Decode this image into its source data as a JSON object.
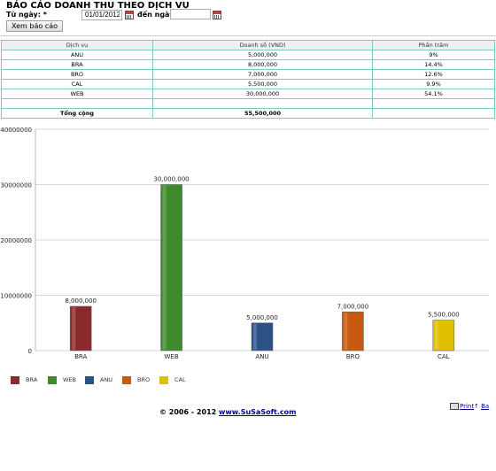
{
  "header": {
    "title": "BÁO CÁO DOANH THU THEO DỊCH VỤ",
    "from_label": "Từ ngày: *",
    "from_value": "01/01/2012",
    "to_label": "đến ngày:",
    "to_value": "",
    "submit_label": "Xem báo cáo"
  },
  "table": {
    "headers": [
      "Dịch vụ",
      "Doanh số (VND)",
      "Phần trăm"
    ],
    "rows": [
      {
        "service": "ANU",
        "revenue": "5,000,000",
        "percent": "9%"
      },
      {
        "service": "BRA",
        "revenue": "8,000,000",
        "percent": "14.4%"
      },
      {
        "service": "BRO",
        "revenue": "7,000,000",
        "percent": "12.6%"
      },
      {
        "service": "CAL",
        "revenue": "5,500,000",
        "percent": "9.9%"
      },
      {
        "service": "WEB",
        "revenue": "30,000,000",
        "percent": "54.1%"
      }
    ],
    "total_label": "Tổng cộng",
    "total_value": "55,500,000"
  },
  "chart_data": {
    "type": "bar",
    "categories": [
      "BRA",
      "WEB",
      "ANU",
      "BRO",
      "CAL"
    ],
    "values": [
      8000000,
      30000000,
      5000000,
      7000000,
      5500000
    ],
    "data_labels": [
      "8,000,000",
      "30,000,000",
      "5,000,000",
      "7,000,000",
      "5,500,000"
    ],
    "y_ticks": [
      "0",
      "10000000",
      "20000000",
      "30000000",
      "40000000"
    ],
    "ylim": [
      0,
      40000000
    ],
    "colors": [
      "#8b2a2a",
      "#3f8a2a",
      "#2a5285",
      "#c75a10",
      "#e0c000"
    ],
    "grid": true,
    "legend": "bottom-left"
  },
  "legend": [
    {
      "label": "BRA",
      "color": "#8b2a2a"
    },
    {
      "label": "WEB",
      "color": "#3f8a2a"
    },
    {
      "label": "ANU",
      "color": "#2a5285"
    },
    {
      "label": "BRO",
      "color": "#c75a10"
    },
    {
      "label": "CAL",
      "color": "#e0c000"
    }
  ],
  "footer": {
    "copyright": "© 2006 - 2012 ",
    "link": "www.SuSaSoft.com",
    "print_label": "Print",
    "back_label": "Ba"
  }
}
